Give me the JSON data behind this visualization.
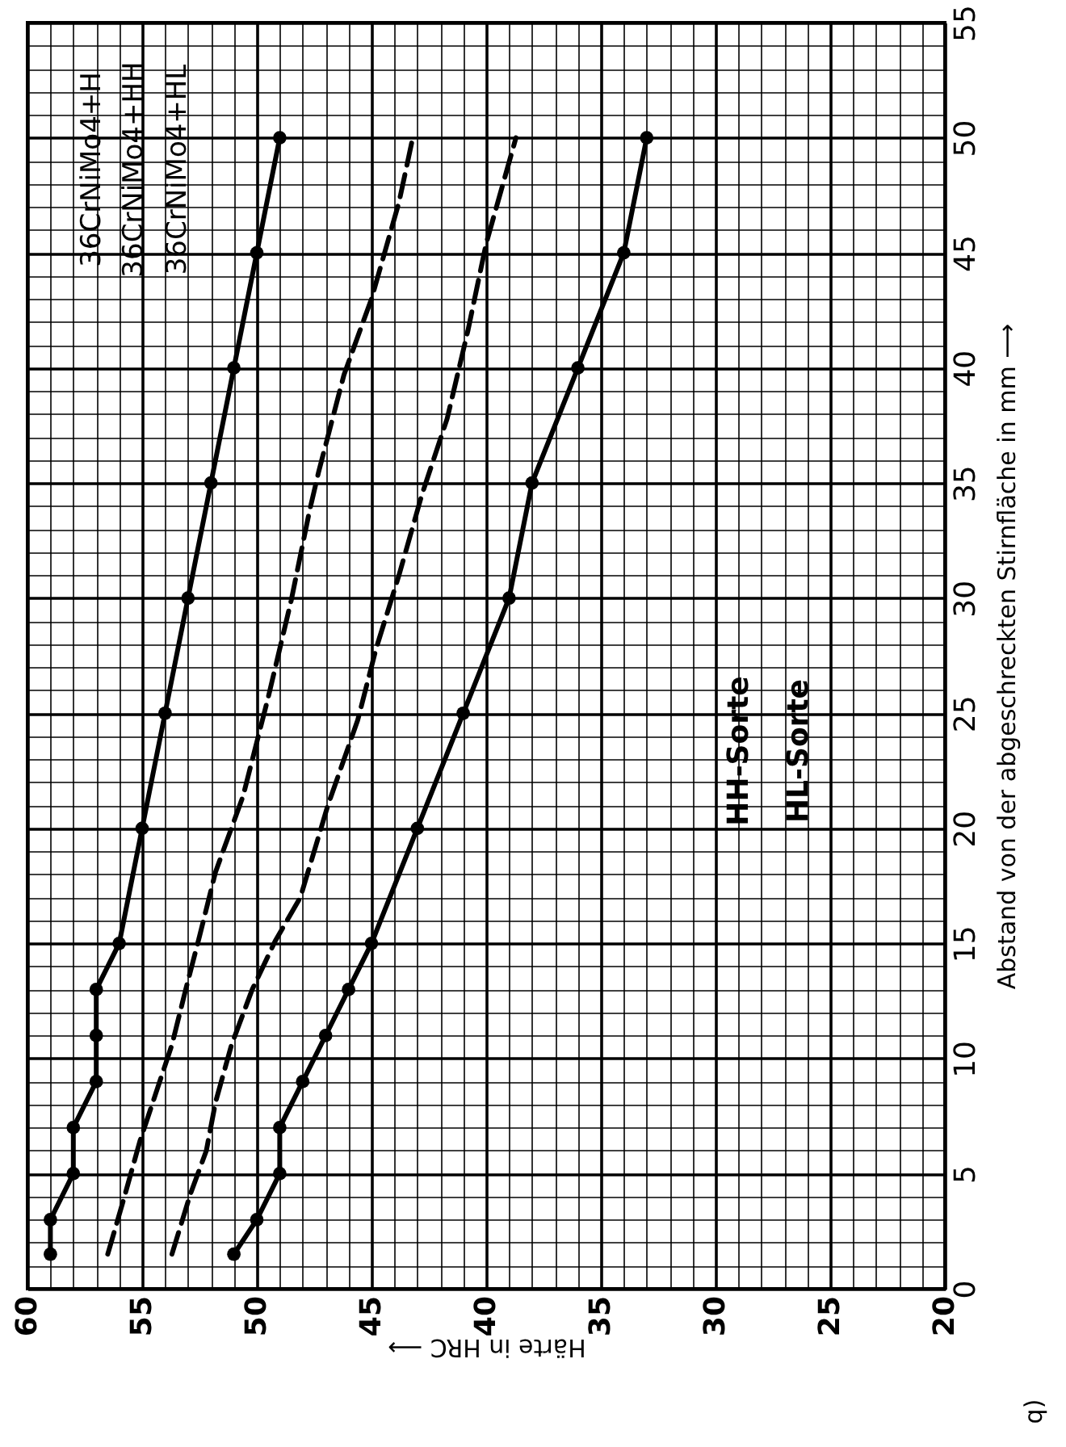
{
  "chart_data": {
    "type": "line",
    "xlabel": "Härte in HRC ⟶",
    "ylabel": "Abstand von der abgeschreckten Stirnfläche in mm ⟶",
    "series": [
      {
        "color": "#000000",
        "marker": "circle",
        "line_style": "solid",
        "x": [
          59,
          59,
          58,
          58,
          57,
          57,
          57,
          56,
          55,
          54,
          53,
          52,
          51,
          50,
          49
        ],
        "values": [
          1.5,
          3,
          5,
          7,
          9,
          11,
          13,
          15,
          20,
          25,
          30,
          35,
          40,
          45,
          50
        ]
      },
      {
        "color": "#000000",
        "marker": "circle",
        "line_style": "solid",
        "x": [
          51,
          50,
          49,
          49,
          48,
          47,
          46,
          45,
          43,
          41,
          39,
          38,
          36,
          34,
          33
        ],
        "values": [
          1.5,
          3,
          5,
          7,
          9,
          11,
          13,
          15,
          20,
          25,
          30,
          35,
          40,
          45,
          50
        ]
      },
      {
        "color": "#000000",
        "marker": "none",
        "line_style": "dashed",
        "x": [
          56.5,
          55.8,
          55.1,
          54.4,
          53.7,
          53.1,
          52.5,
          51.8,
          50.6,
          49.5,
          48.5,
          47.7,
          47.3,
          46.2,
          45.0,
          43.8,
          43.2
        ],
        "values": [
          1.5,
          3.9,
          6.4,
          8.5,
          10.6,
          13,
          15.3,
          18.1,
          21.4,
          25.7,
          29.9,
          33.8,
          35.5,
          39.7,
          43,
          47.2,
          50
        ]
      },
      {
        "color": "#000000",
        "marker": "none",
        "line_style": "dashed",
        "x": [
          53.7,
          52.9,
          52.2,
          51.8,
          51.1,
          50.2,
          49.2,
          48.1,
          46.9,
          45.6,
          44.8,
          43.8,
          42.8,
          41.7,
          40.8,
          40.0,
          38.7
        ],
        "values": [
          1.5,
          4.1,
          6,
          8.1,
          10.6,
          13,
          15.1,
          17,
          21,
          24.7,
          27.8,
          31,
          34.5,
          37.8,
          41.6,
          45.4,
          50
        ]
      }
    ],
    "xlim": [
      60,
      20
    ],
    "xticks": [
      60,
      55,
      50,
      45,
      40,
      35,
      30,
      25,
      20
    ],
    "ylim": [
      0,
      55
    ],
    "yticks": [
      0,
      5,
      10,
      15,
      20,
      25,
      30,
      35,
      40,
      45,
      50,
      55
    ],
    "grid": true,
    "annotations": [
      "36CrNiMo4+H",
      "36CrNiMo4+HH",
      "36CrNiMo4+HL",
      "HH-Sorte",
      "HL-Sorte",
      "q)"
    ]
  }
}
